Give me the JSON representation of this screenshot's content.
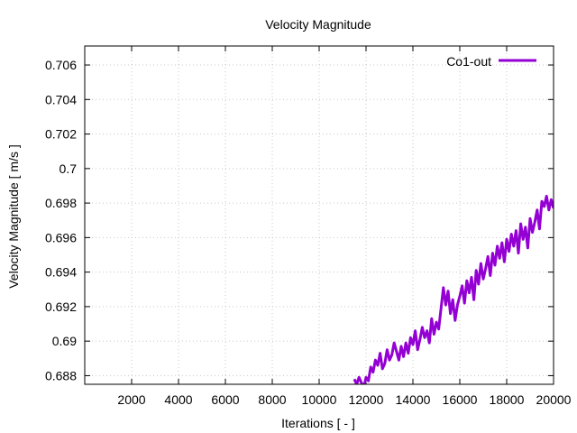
{
  "chart_data": {
    "type": "line",
    "title": "Velocity Magnitude",
    "xlabel": "Iterations [ - ]",
    "ylabel": "Velocity Magnitude [ m/s ]",
    "xlim": [
      0,
      20000
    ],
    "ylim": [
      0.6875,
      0.7071
    ],
    "grid": true,
    "legend_position": "top-right",
    "x_ticks": [
      2000,
      4000,
      6000,
      8000,
      10000,
      12000,
      14000,
      16000,
      18000,
      20000
    ],
    "x_tick_labels": [
      "2000",
      "4000",
      "6000",
      "8000",
      "10000",
      "12000",
      "14000",
      "16000",
      "18000",
      "20000"
    ],
    "y_ticks": [
      0.688,
      0.69,
      0.692,
      0.694,
      0.696,
      0.698,
      0.7,
      0.702,
      0.704,
      0.706
    ],
    "y_tick_labels": [
      "0.688",
      "0.69",
      "0.692",
      "0.694",
      "0.696",
      "0.698",
      "0.7",
      "0.702",
      "0.704",
      "0.706"
    ],
    "series": [
      {
        "name": "Co1-out",
        "color": "#9400d3",
        "x": [
          11500,
          11600,
          11700,
          11800,
          11900,
          12000,
          12100,
          12200,
          12300,
          12400,
          12500,
          12600,
          12700,
          12800,
          12900,
          13000,
          13100,
          13200,
          13300,
          13400,
          13500,
          13600,
          13700,
          13800,
          13900,
          14000,
          14100,
          14200,
          14300,
          14400,
          14500,
          14600,
          14700,
          14800,
          14900,
          15000,
          15100,
          15200,
          15300,
          15400,
          15500,
          15600,
          15700,
          15800,
          15900,
          16000,
          16100,
          16200,
          16300,
          16400,
          16500,
          16600,
          16700,
          16800,
          16900,
          17000,
          17100,
          17200,
          17300,
          17400,
          17500,
          17600,
          17700,
          17800,
          17900,
          18000,
          18100,
          18200,
          18300,
          18400,
          18500,
          18600,
          18700,
          18800,
          18900,
          19000,
          19100,
          19200,
          19300,
          19400,
          19500,
          19600,
          19700,
          19800,
          19900,
          20000
        ],
        "values": [
          0.6878,
          0.6875,
          0.6879,
          0.6876,
          0.6873,
          0.6879,
          0.6877,
          0.6885,
          0.6882,
          0.6889,
          0.6886,
          0.6893,
          0.6884,
          0.6887,
          0.6895,
          0.6889,
          0.6892,
          0.6899,
          0.6894,
          0.6889,
          0.6897,
          0.6891,
          0.6899,
          0.6893,
          0.6902,
          0.6898,
          0.6906,
          0.6895,
          0.6901,
          0.6908,
          0.6902,
          0.6906,
          0.6899,
          0.6913,
          0.6904,
          0.6911,
          0.6907,
          0.6919,
          0.6931,
          0.6921,
          0.6929,
          0.6916,
          0.6924,
          0.6912,
          0.6921,
          0.6926,
          0.6932,
          0.6922,
          0.6935,
          0.6928,
          0.6937,
          0.6924,
          0.6941,
          0.6933,
          0.6945,
          0.6936,
          0.6942,
          0.6949,
          0.6938,
          0.6951,
          0.6944,
          0.6955,
          0.6948,
          0.6957,
          0.6946,
          0.6959,
          0.6952,
          0.6962,
          0.6955,
          0.6964,
          0.6951,
          0.6968,
          0.6959,
          0.6966,
          0.6954,
          0.6971,
          0.6963,
          0.6969,
          0.6976,
          0.6965,
          0.6981,
          0.6978,
          0.6984,
          0.6976,
          0.6982,
          0.6977
        ]
      }
    ]
  }
}
